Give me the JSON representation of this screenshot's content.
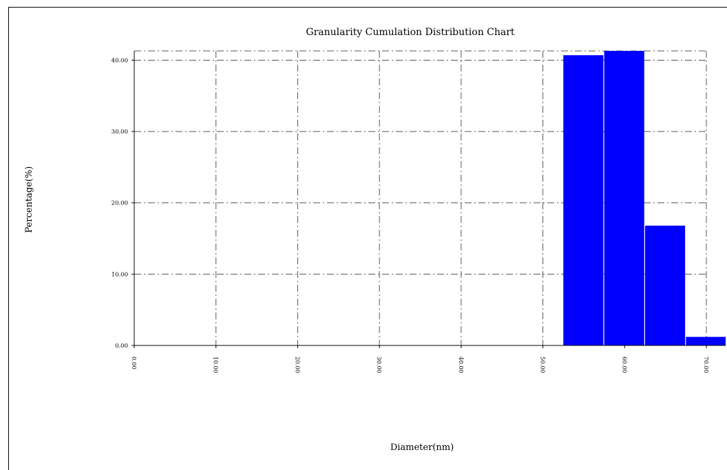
{
  "chart_data": {
    "type": "bar",
    "title": "Granularity Cumulation Distribution   Chart",
    "xlabel": "Diameter(nm)",
    "ylabel": "Percentage(%)",
    "x_ticks": [
      "0.00",
      "10.00",
      "20.00",
      "30.00",
      "40.00",
      "50.00",
      "60.00",
      "70.00"
    ],
    "y_ticks": [
      "0.00",
      "10.00",
      "20.00",
      "30.00",
      "40.00"
    ],
    "xlim": [
      0,
      70
    ],
    "ylim": [
      0,
      41.3
    ],
    "grid": true,
    "bar_color": "#0000ff",
    "bars": [
      {
        "x0": 52.5,
        "x1": 57.4,
        "value": 40.7
      },
      {
        "x0": 57.5,
        "x1": 62.4,
        "value": 41.3
      },
      {
        "x0": 62.5,
        "x1": 67.4,
        "value": 16.8
      },
      {
        "x0": 67.5,
        "x1": 72.4,
        "value": 1.2
      }
    ]
  }
}
